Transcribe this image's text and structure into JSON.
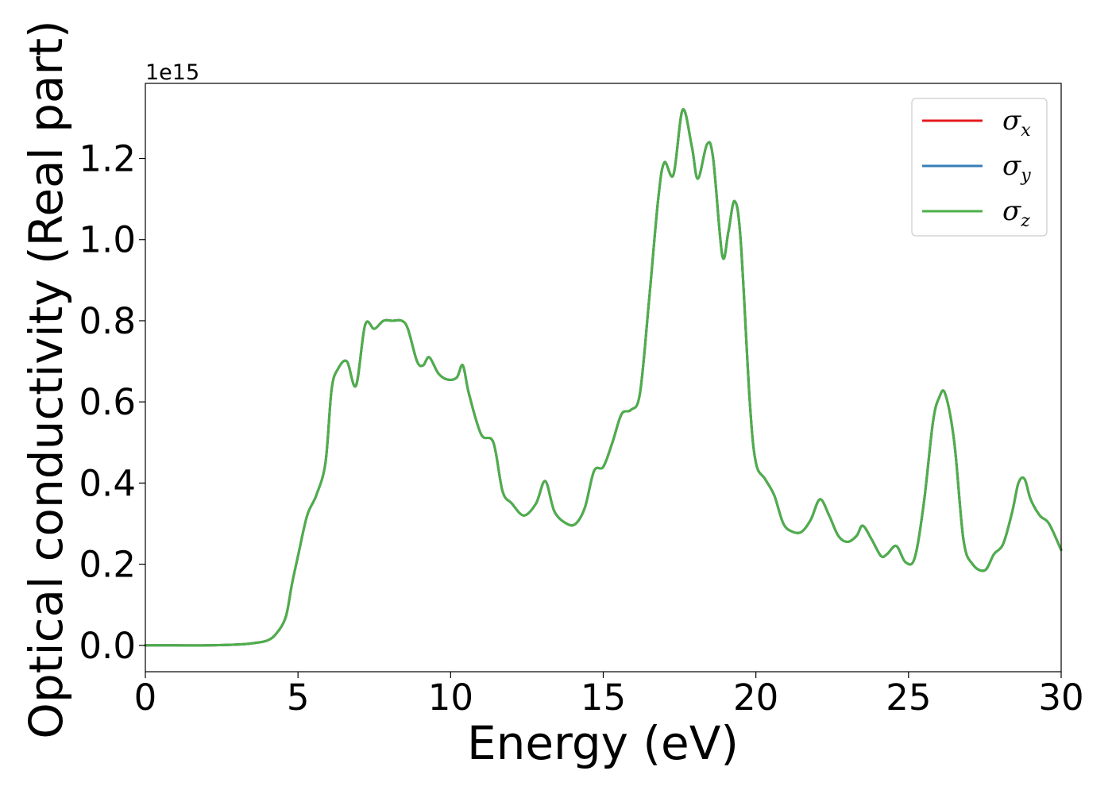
{
  "chart_data": {
    "type": "line",
    "title": "",
    "xlabel": "Energy (eV)",
    "ylabel": "Optical conductivity (Real part)",
    "y_offset_label": "1e15",
    "xlim": [
      0,
      30
    ],
    "ylim": [
      -0.065,
      1.385
    ],
    "x_ticks": [
      0,
      5,
      10,
      15,
      20,
      25,
      30
    ],
    "x_tick_labels": [
      "0",
      "5",
      "10",
      "15",
      "20",
      "25",
      "30"
    ],
    "y_ticks": [
      0.0,
      0.2,
      0.4,
      0.6,
      0.8,
      1.0,
      1.2
    ],
    "y_tick_labels": [
      "0.0",
      "0.2",
      "0.4",
      "0.6",
      "0.8",
      "1.0",
      "1.2"
    ],
    "grid": false,
    "legend_position": "top-right",
    "x": [
      0,
      1,
      2,
      3,
      3.5,
      4,
      4.3,
      4.6,
      4.8,
      5.0,
      5.3,
      5.6,
      5.9,
      6.1,
      6.3,
      6.6,
      6.9,
      7.2,
      7.5,
      7.8,
      8.1,
      8.4,
      8.6,
      8.9,
      9.1,
      9.3,
      9.6,
      9.9,
      10.2,
      10.4,
      10.6,
      11.0,
      11.4,
      11.7,
      12.0,
      12.4,
      12.8,
      13.1,
      13.4,
      13.8,
      14.1,
      14.4,
      14.7,
      15.0,
      15.3,
      15.6,
      15.9,
      16.2,
      16.5,
      16.8,
      17.0,
      17.3,
      17.6,
      17.9,
      18.1,
      18.4,
      18.6,
      18.9,
      19.1,
      19.3,
      19.5,
      19.8,
      20.0,
      20.3,
      20.6,
      20.9,
      21.2,
      21.5,
      21.8,
      22.1,
      22.4,
      22.7,
      23.0,
      23.3,
      23.5,
      23.8,
      24.1,
      24.3,
      24.6,
      24.9,
      25.2,
      25.5,
      25.8,
      26.0,
      26.2,
      26.5,
      26.8,
      27.1,
      27.5,
      27.8,
      28.1,
      28.4,
      28.6,
      28.8,
      29.0,
      29.3,
      29.6,
      30.0
    ],
    "series": [
      {
        "name": "σx",
        "color": "#e41a1c",
        "values": [
          0.0,
          0.0,
          0.0,
          0.002,
          0.005,
          0.012,
          0.03,
          0.07,
          0.15,
          0.22,
          0.32,
          0.37,
          0.45,
          0.63,
          0.68,
          0.7,
          0.64,
          0.79,
          0.78,
          0.8,
          0.8,
          0.8,
          0.78,
          0.7,
          0.69,
          0.71,
          0.67,
          0.655,
          0.66,
          0.69,
          0.62,
          0.52,
          0.5,
          0.38,
          0.35,
          0.32,
          0.35,
          0.405,
          0.33,
          0.3,
          0.3,
          0.34,
          0.43,
          0.44,
          0.5,
          0.57,
          0.58,
          0.62,
          0.85,
          1.1,
          1.19,
          1.16,
          1.32,
          1.23,
          1.15,
          1.235,
          1.2,
          0.96,
          1.02,
          1.095,
          1.0,
          0.6,
          0.45,
          0.41,
          0.37,
          0.3,
          0.28,
          0.28,
          0.31,
          0.36,
          0.32,
          0.27,
          0.255,
          0.27,
          0.295,
          0.26,
          0.22,
          0.225,
          0.245,
          0.205,
          0.215,
          0.35,
          0.55,
          0.61,
          0.62,
          0.5,
          0.26,
          0.2,
          0.185,
          0.225,
          0.25,
          0.33,
          0.4,
          0.41,
          0.36,
          0.32,
          0.3,
          0.235
        ]
      },
      {
        "name": "σy",
        "color": "#377eb8",
        "values": [
          0.0,
          0.0,
          0.0,
          0.002,
          0.005,
          0.012,
          0.03,
          0.07,
          0.15,
          0.22,
          0.32,
          0.37,
          0.45,
          0.63,
          0.68,
          0.7,
          0.64,
          0.79,
          0.78,
          0.8,
          0.8,
          0.8,
          0.78,
          0.7,
          0.69,
          0.71,
          0.67,
          0.655,
          0.66,
          0.69,
          0.62,
          0.52,
          0.5,
          0.38,
          0.35,
          0.32,
          0.35,
          0.405,
          0.33,
          0.3,
          0.3,
          0.34,
          0.43,
          0.44,
          0.5,
          0.57,
          0.58,
          0.62,
          0.85,
          1.1,
          1.19,
          1.16,
          1.32,
          1.23,
          1.15,
          1.235,
          1.2,
          0.96,
          1.02,
          1.095,
          1.0,
          0.6,
          0.45,
          0.41,
          0.37,
          0.3,
          0.28,
          0.28,
          0.31,
          0.36,
          0.32,
          0.27,
          0.255,
          0.27,
          0.295,
          0.26,
          0.22,
          0.225,
          0.245,
          0.205,
          0.215,
          0.35,
          0.55,
          0.61,
          0.62,
          0.5,
          0.26,
          0.2,
          0.185,
          0.225,
          0.25,
          0.33,
          0.4,
          0.41,
          0.36,
          0.32,
          0.3,
          0.235
        ]
      },
      {
        "name": "σz",
        "color": "#4daf4a",
        "values": [
          0.0,
          0.0,
          0.0,
          0.002,
          0.005,
          0.012,
          0.03,
          0.07,
          0.15,
          0.22,
          0.32,
          0.37,
          0.45,
          0.63,
          0.68,
          0.7,
          0.64,
          0.79,
          0.78,
          0.8,
          0.8,
          0.8,
          0.78,
          0.7,
          0.69,
          0.71,
          0.67,
          0.655,
          0.66,
          0.69,
          0.62,
          0.52,
          0.5,
          0.38,
          0.35,
          0.32,
          0.35,
          0.405,
          0.33,
          0.3,
          0.3,
          0.34,
          0.43,
          0.44,
          0.5,
          0.57,
          0.58,
          0.62,
          0.85,
          1.1,
          1.19,
          1.16,
          1.32,
          1.23,
          1.15,
          1.235,
          1.2,
          0.96,
          1.02,
          1.095,
          1.0,
          0.6,
          0.45,
          0.41,
          0.37,
          0.3,
          0.28,
          0.28,
          0.31,
          0.36,
          0.32,
          0.27,
          0.255,
          0.27,
          0.295,
          0.26,
          0.22,
          0.225,
          0.245,
          0.205,
          0.215,
          0.35,
          0.55,
          0.61,
          0.62,
          0.5,
          0.26,
          0.2,
          0.185,
          0.225,
          0.25,
          0.33,
          0.4,
          0.41,
          0.36,
          0.32,
          0.3,
          0.235
        ]
      }
    ],
    "legend": [
      {
        "symbol": "σ",
        "subscript": "x"
      },
      {
        "symbol": "σ",
        "subscript": "y"
      },
      {
        "symbol": "σ",
        "subscript": "z"
      }
    ]
  }
}
